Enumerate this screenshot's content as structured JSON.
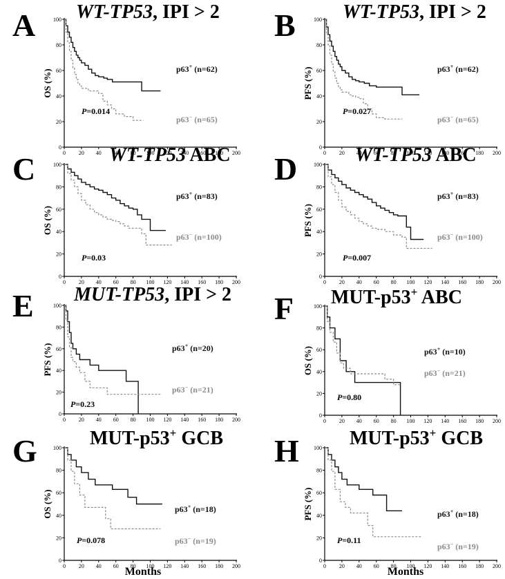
{
  "figure": {
    "months_label": "Months",
    "colors": {
      "p63_pos": "#111111",
      "p63_neg": "#8c8c8c"
    }
  },
  "chart_data": [
    {
      "panel": "A",
      "type": "line",
      "title_prefix": "WT-TP53",
      "title_suffix": ", IPI > 2",
      "ylabel": "OS (%)",
      "xlabel": "",
      "xlim": [
        0,
        200
      ],
      "ylim": [
        0,
        100
      ],
      "xticks": [
        0,
        20,
        40,
        60,
        80,
        100,
        120,
        140,
        160,
        180,
        200
      ],
      "yticks": [
        0,
        20,
        40,
        60,
        80,
        100
      ],
      "series": [
        {
          "name": "p63+",
          "label": "(n=62)",
          "style": "solid",
          "x": [
            0,
            2,
            4,
            6,
            8,
            10,
            12,
            14,
            16,
            18,
            20,
            24,
            28,
            32,
            36,
            40,
            46,
            50,
            56,
            62,
            70,
            80,
            90,
            100,
            112
          ],
          "y": [
            100,
            95,
            90,
            86,
            82,
            78,
            75,
            72,
            70,
            68,
            66,
            64,
            61,
            58,
            56,
            55,
            54,
            53,
            51,
            51,
            51,
            51,
            44,
            44,
            44
          ]
        },
        {
          "name": "p63−",
          "label": "(n=65)",
          "style": "dashed",
          "x": [
            0,
            2,
            4,
            6,
            8,
            10,
            12,
            14,
            16,
            18,
            20,
            24,
            28,
            32,
            36,
            40,
            45,
            50,
            55,
            60,
            70,
            80,
            92
          ],
          "y": [
            100,
            90,
            82,
            75,
            68,
            62,
            57,
            53,
            50,
            48,
            46,
            46,
            44,
            44,
            44,
            42,
            36,
            33,
            30,
            26,
            24,
            21,
            21
          ]
        }
      ],
      "pvalue": "=0.014"
    },
    {
      "panel": "B",
      "type": "line",
      "title_prefix": "WT-TP53",
      "title_suffix": ", IPI > 2",
      "ylabel": "PFS (%)",
      "xlabel": "",
      "xlim": [
        0,
        200
      ],
      "ylim": [
        0,
        100
      ],
      "xticks": [
        0,
        20,
        40,
        60,
        80,
        100,
        120,
        140,
        160,
        180,
        200
      ],
      "yticks": [
        0,
        20,
        40,
        60,
        80,
        100
      ],
      "series": [
        {
          "name": "p63+",
          "label": "(n=62)",
          "style": "solid",
          "x": [
            0,
            2,
            4,
            6,
            8,
            10,
            12,
            14,
            16,
            18,
            20,
            24,
            28,
            32,
            36,
            40,
            46,
            52,
            60,
            70,
            80,
            90,
            100,
            110
          ],
          "y": [
            100,
            94,
            88,
            83,
            79,
            75,
            71,
            68,
            65,
            63,
            60,
            58,
            55,
            53,
            52,
            51,
            50,
            48,
            47,
            47,
            47,
            41,
            41,
            41
          ]
        },
        {
          "name": "p63−",
          "label": "(n=65)",
          "style": "dashed",
          "x": [
            0,
            2,
            4,
            6,
            8,
            10,
            12,
            14,
            16,
            18,
            20,
            24,
            28,
            32,
            36,
            40,
            45,
            50,
            55,
            60,
            70,
            80,
            90
          ],
          "y": [
            100,
            88,
            80,
            72,
            65,
            59,
            54,
            50,
            47,
            45,
            43,
            43,
            41,
            40,
            39,
            38,
            34,
            30,
            26,
            23,
            22,
            22,
            22
          ]
        }
      ],
      "pvalue": "=0.027"
    },
    {
      "panel": "C",
      "type": "line",
      "title_prefix": "WT-TP53",
      "title_suffix": " ABC",
      "ylabel": "OS (%)",
      "xlabel": "",
      "xlim": [
        0,
        200
      ],
      "ylim": [
        0,
        100
      ],
      "xticks": [
        0,
        20,
        40,
        60,
        80,
        100,
        120,
        140,
        160,
        180,
        200
      ],
      "yticks": [
        0,
        20,
        40,
        60,
        80,
        100
      ],
      "series": [
        {
          "name": "p63+",
          "label": "(n=83)",
          "style": "solid",
          "x": [
            0,
            4,
            8,
            12,
            16,
            20,
            25,
            30,
            35,
            40,
            45,
            50,
            55,
            60,
            65,
            70,
            75,
            80,
            85,
            90,
            95,
            100,
            110,
            118
          ],
          "y": [
            100,
            96,
            93,
            90,
            87,
            84,
            82,
            80,
            78,
            77,
            75,
            73,
            70,
            68,
            65,
            63,
            61,
            60,
            55,
            51,
            51,
            41,
            41,
            41
          ]
        },
        {
          "name": "p63−",
          "label": "(n=100)",
          "style": "dashed",
          "x": [
            0,
            4,
            8,
            12,
            16,
            20,
            25,
            30,
            35,
            40,
            45,
            50,
            55,
            60,
            65,
            70,
            75,
            80,
            90,
            95,
            100,
            110,
            125
          ],
          "y": [
            100,
            92,
            86,
            80,
            74,
            68,
            64,
            60,
            57,
            55,
            53,
            51,
            50,
            49,
            47,
            45,
            43,
            43,
            38,
            28,
            28,
            28,
            28
          ]
        }
      ],
      "pvalue": "=0.03"
    },
    {
      "panel": "D",
      "type": "line",
      "title_prefix": "WT-TP53",
      "title_suffix": " ABC",
      "ylabel": "PFS (%)",
      "xlabel": "",
      "xlim": [
        0,
        200
      ],
      "ylim": [
        0,
        100
      ],
      "xticks": [
        0,
        20,
        40,
        60,
        80,
        100,
        120,
        140,
        160,
        180,
        200
      ],
      "yticks": [
        0,
        20,
        40,
        60,
        80,
        100
      ],
      "series": [
        {
          "name": "p63+",
          "label": "(n=83)",
          "style": "solid",
          "x": [
            0,
            4,
            8,
            12,
            16,
            20,
            25,
            30,
            35,
            40,
            45,
            50,
            55,
            60,
            65,
            70,
            75,
            80,
            85,
            90,
            95,
            100,
            110,
            115
          ],
          "y": [
            100,
            95,
            91,
            88,
            85,
            82,
            79,
            77,
            75,
            73,
            71,
            69,
            66,
            63,
            61,
            59,
            57,
            55,
            54,
            54,
            44,
            33,
            33,
            33
          ]
        },
        {
          "name": "p63−",
          "label": "(n=100)",
          "style": "dashed",
          "x": [
            0,
            4,
            8,
            12,
            16,
            20,
            25,
            30,
            35,
            40,
            45,
            50,
            55,
            60,
            70,
            80,
            90,
            95,
            100,
            110,
            125
          ],
          "y": [
            100,
            89,
            82,
            75,
            68,
            62,
            58,
            55,
            52,
            49,
            47,
            45,
            43,
            42,
            40,
            37,
            35,
            25,
            25,
            25,
            25
          ]
        }
      ],
      "pvalue": "=0.007"
    },
    {
      "panel": "E",
      "type": "line",
      "title_prefix": "MUT-TP53",
      "title_suffix": ", IPI > 2",
      "ylabel": "PFS (%)",
      "xlabel": "",
      "xlim": [
        0,
        200
      ],
      "ylim": [
        0,
        100
      ],
      "xticks": [
        0,
        20,
        40,
        60,
        80,
        100,
        120,
        140,
        160,
        180,
        200
      ],
      "yticks": [
        0,
        20,
        40,
        60,
        80,
        100
      ],
      "series": [
        {
          "name": "p63+",
          "label": "(n=20)",
          "style": "solid",
          "x": [
            0,
            2,
            4,
            6,
            8,
            10,
            14,
            18,
            24,
            30,
            40,
            50,
            60,
            72,
            84,
            86
          ],
          "y": [
            100,
            95,
            85,
            75,
            65,
            60,
            55,
            50,
            50,
            45,
            40,
            40,
            40,
            30,
            30,
            0
          ]
        },
        {
          "name": "p63−",
          "label": "(n=21)",
          "style": "dashed",
          "x": [
            0,
            2,
            4,
            6,
            8,
            10,
            14,
            18,
            24,
            30,
            40,
            50,
            60,
            80,
            100,
            112
          ],
          "y": [
            100,
            86,
            71,
            62,
            52,
            48,
            43,
            38,
            30,
            24,
            24,
            18,
            18,
            18,
            18,
            18
          ]
        }
      ],
      "pvalue": "=0.23"
    },
    {
      "panel": "F",
      "type": "line",
      "title_prefix": "MUT-p53",
      "title_sup": "+",
      "title_suffix": " ABC",
      "ylabel": "OS (%)",
      "xlabel": "",
      "xlim": [
        0,
        200
      ],
      "ylim": [
        0,
        100
      ],
      "xticks": [
        0,
        20,
        40,
        60,
        80,
        100,
        120,
        140,
        160,
        180,
        200
      ],
      "yticks": [
        0,
        20,
        40,
        60,
        80,
        100
      ],
      "series": [
        {
          "name": "p63+",
          "label": "(n=10)",
          "style": "solid",
          "x": [
            0,
            3,
            6,
            12,
            18,
            25,
            35,
            50,
            70,
            86,
            88
          ],
          "y": [
            100,
            90,
            80,
            70,
            50,
            40,
            30,
            30,
            30,
            30,
            0
          ]
        },
        {
          "name": "p63−",
          "label": "(n=21)",
          "style": "dashed",
          "x": [
            0,
            3,
            6,
            10,
            14,
            18,
            22,
            30,
            40,
            60,
            70,
            80,
            88
          ],
          "y": [
            100,
            86,
            76,
            67,
            57,
            48,
            43,
            38,
            38,
            38,
            33,
            28,
            28
          ]
        }
      ],
      "pvalue": "=0.80"
    },
    {
      "panel": "G",
      "type": "line",
      "title_prefix": "MUT-p53",
      "title_sup": "+",
      "title_suffix": " GCB",
      "ylabel": "OS (%)",
      "xlabel": "Months",
      "xlim": [
        0,
        200
      ],
      "ylim": [
        0,
        100
      ],
      "xticks": [
        0,
        20,
        40,
        60,
        80,
        100,
        120,
        140,
        160,
        180,
        200
      ],
      "yticks": [
        0,
        20,
        40,
        60,
        80,
        100
      ],
      "series": [
        {
          "name": "p63+",
          "label": "(n=18)",
          "style": "solid",
          "x": [
            0,
            4,
            8,
            14,
            20,
            28,
            36,
            46,
            56,
            64,
            74,
            84,
            94,
            114
          ],
          "y": [
            100,
            94,
            89,
            83,
            78,
            72,
            67,
            67,
            63,
            63,
            56,
            50,
            50,
            50
          ]
        },
        {
          "name": "p63−",
          "label": "(n=19)",
          "style": "dashed",
          "x": [
            0,
            4,
            8,
            12,
            18,
            24,
            36,
            48,
            54,
            64,
            80,
            96,
            112
          ],
          "y": [
            100,
            89,
            79,
            68,
            58,
            47,
            47,
            37,
            28,
            28,
            28,
            28,
            28
          ]
        }
      ],
      "pvalue": "=0.078"
    },
    {
      "panel": "H",
      "type": "line",
      "title_prefix": "MUT-p53",
      "title_sup": "+",
      "title_suffix": " GCB",
      "ylabel": "PFS (%)",
      "xlabel": "Months",
      "xlim": [
        0,
        200
      ],
      "ylim": [
        0,
        100
      ],
      "xticks": [
        0,
        20,
        40,
        60,
        80,
        100,
        120,
        140,
        160,
        180,
        200
      ],
      "yticks": [
        0,
        20,
        40,
        60,
        80,
        100
      ],
      "series": [
        {
          "name": "p63+",
          "label": "(n=18)",
          "style": "solid",
          "x": [
            0,
            4,
            8,
            12,
            16,
            20,
            26,
            34,
            40,
            48,
            56,
            64,
            72,
            80,
            90
          ],
          "y": [
            100,
            94,
            89,
            83,
            78,
            72,
            67,
            67,
            63,
            63,
            58,
            58,
            44,
            44,
            44
          ]
        },
        {
          "name": "p63−",
          "label": "(n=19)",
          "style": "dashed",
          "x": [
            0,
            4,
            8,
            12,
            18,
            24,
            30,
            40,
            50,
            56,
            70,
            90,
            112
          ],
          "y": [
            100,
            89,
            79,
            63,
            52,
            47,
            42,
            42,
            31,
            21,
            21,
            21,
            21
          ]
        }
      ],
      "pvalue": "=0.11"
    }
  ]
}
